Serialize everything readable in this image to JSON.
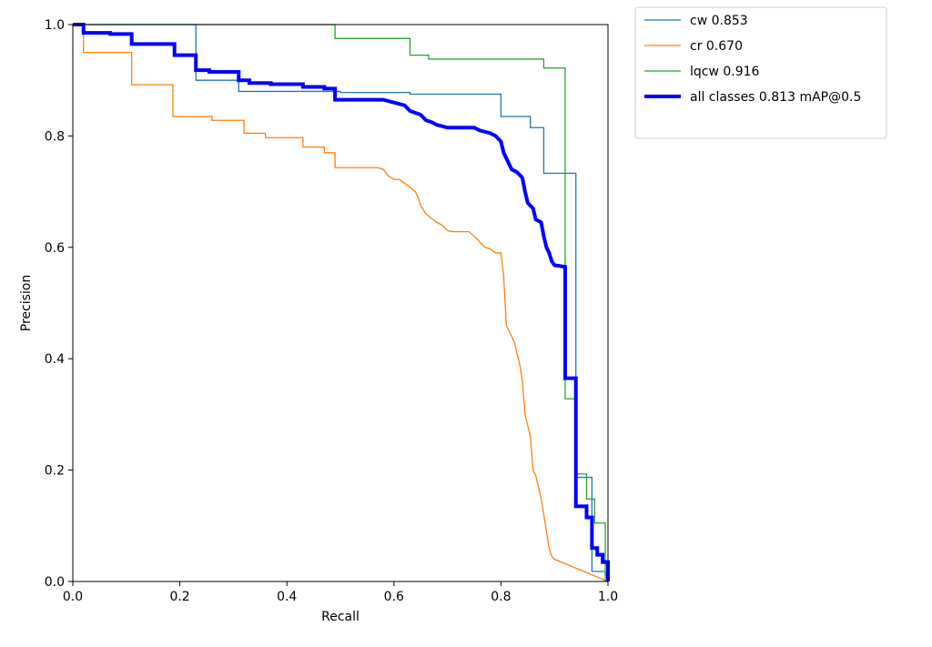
{
  "chart_data": {
    "type": "line",
    "title": "",
    "xlabel": "Recall",
    "ylabel": "Precision",
    "xlim": [
      0,
      1
    ],
    "ylim": [
      0,
      1
    ],
    "xticks": [
      0.0,
      0.2,
      0.4,
      0.6,
      0.8,
      1.0
    ],
    "yticks": [
      0.0,
      0.2,
      0.4,
      0.6,
      0.8,
      1.0
    ],
    "xtick_labels": [
      "0.0",
      "0.2",
      "0.4",
      "0.6",
      "0.8",
      "1.0"
    ],
    "ytick_labels": [
      "0.0",
      "0.2",
      "0.4",
      "0.6",
      "0.8",
      "1.0"
    ],
    "grid": false,
    "legend_position": "outside-top-right",
    "series": [
      {
        "name": "cw 0.853",
        "color": "#1f77b4",
        "points": [
          [
            0,
            1.0
          ],
          [
            0.23,
            1.0
          ],
          [
            0.23,
            0.9
          ],
          [
            0.31,
            0.9
          ],
          [
            0.31,
            0.88
          ],
          [
            0.5,
            0.88
          ],
          [
            0.5,
            0.878
          ],
          [
            0.63,
            0.878
          ],
          [
            0.63,
            0.875
          ],
          [
            0.8,
            0.875
          ],
          [
            0.8,
            0.835
          ],
          [
            0.855,
            0.835
          ],
          [
            0.855,
            0.815
          ],
          [
            0.88,
            0.815
          ],
          [
            0.88,
            0.733
          ],
          [
            0.94,
            0.733
          ],
          [
            0.94,
            0.187
          ],
          [
            0.97,
            0.187
          ],
          [
            0.97,
            0.018
          ],
          [
            0.995,
            0.018
          ],
          [
            1.0,
            0.0
          ]
        ]
      },
      {
        "name": "cr 0.670",
        "color": "#ff7f0e",
        "points": [
          [
            0,
            1.0
          ],
          [
            0.02,
            1.0
          ],
          [
            0.02,
            0.95
          ],
          [
            0.11,
            0.95
          ],
          [
            0.11,
            0.892
          ],
          [
            0.187,
            0.892
          ],
          [
            0.187,
            0.835
          ],
          [
            0.26,
            0.835
          ],
          [
            0.26,
            0.828
          ],
          [
            0.32,
            0.828
          ],
          [
            0.32,
            0.805
          ],
          [
            0.36,
            0.805
          ],
          [
            0.36,
            0.797
          ],
          [
            0.43,
            0.797
          ],
          [
            0.43,
            0.78
          ],
          [
            0.47,
            0.78
          ],
          [
            0.47,
            0.77
          ],
          [
            0.49,
            0.77
          ],
          [
            0.49,
            0.743
          ],
          [
            0.57,
            0.743
          ],
          [
            0.58,
            0.74
          ],
          [
            0.59,
            0.728
          ],
          [
            0.6,
            0.722
          ],
          [
            0.61,
            0.722
          ],
          [
            0.62,
            0.715
          ],
          [
            0.63,
            0.708
          ],
          [
            0.64,
            0.7
          ],
          [
            0.645,
            0.69
          ],
          [
            0.65,
            0.675
          ],
          [
            0.66,
            0.66
          ],
          [
            0.67,
            0.652
          ],
          [
            0.68,
            0.645
          ],
          [
            0.69,
            0.64
          ],
          [
            0.7,
            0.63
          ],
          [
            0.71,
            0.628
          ],
          [
            0.74,
            0.628
          ],
          [
            0.75,
            0.62
          ],
          [
            0.76,
            0.61
          ],
          [
            0.77,
            0.6
          ],
          [
            0.78,
            0.597
          ],
          [
            0.79,
            0.59
          ],
          [
            0.8,
            0.59
          ],
          [
            0.805,
            0.55
          ],
          [
            0.81,
            0.46
          ],
          [
            0.815,
            0.45
          ],
          [
            0.82,
            0.44
          ],
          [
            0.825,
            0.43
          ],
          [
            0.83,
            0.41
          ],
          [
            0.835,
            0.39
          ],
          [
            0.84,
            0.36
          ],
          [
            0.845,
            0.3
          ],
          [
            0.85,
            0.28
          ],
          [
            0.855,
            0.26
          ],
          [
            0.86,
            0.2
          ],
          [
            0.865,
            0.19
          ],
          [
            0.87,
            0.17
          ],
          [
            0.875,
            0.15
          ],
          [
            0.88,
            0.12
          ],
          [
            0.885,
            0.09
          ],
          [
            0.89,
            0.06
          ],
          [
            0.895,
            0.045
          ],
          [
            0.9,
            0.04
          ],
          [
            0.95,
            0.02
          ],
          [
            1.0,
            0.0
          ]
        ]
      },
      {
        "name": "lqcw 0.916",
        "color": "#2ca02c",
        "points": [
          [
            0,
            1.0
          ],
          [
            0.49,
            1.0
          ],
          [
            0.49,
            0.975
          ],
          [
            0.63,
            0.975
          ],
          [
            0.63,
            0.945
          ],
          [
            0.665,
            0.945
          ],
          [
            0.665,
            0.938
          ],
          [
            0.88,
            0.938
          ],
          [
            0.88,
            0.922
          ],
          [
            0.92,
            0.922
          ],
          [
            0.92,
            0.328
          ],
          [
            0.94,
            0.328
          ],
          [
            0.94,
            0.193
          ],
          [
            0.96,
            0.193
          ],
          [
            0.96,
            0.148
          ],
          [
            0.975,
            0.148
          ],
          [
            0.975,
            0.105
          ],
          [
            0.995,
            0.105
          ],
          [
            0.995,
            0.0
          ]
        ]
      },
      {
        "name": "all classes 0.813 mAP@0.5",
        "color": "#0000ff",
        "points": [
          [
            0,
            1.0
          ],
          [
            0.02,
            1.0
          ],
          [
            0.02,
            0.985
          ],
          [
            0.07,
            0.985
          ],
          [
            0.07,
            0.983
          ],
          [
            0.11,
            0.983
          ],
          [
            0.11,
            0.965
          ],
          [
            0.19,
            0.965
          ],
          [
            0.19,
            0.945
          ],
          [
            0.23,
            0.945
          ],
          [
            0.23,
            0.918
          ],
          [
            0.255,
            0.918
          ],
          [
            0.255,
            0.915
          ],
          [
            0.31,
            0.915
          ],
          [
            0.31,
            0.9
          ],
          [
            0.33,
            0.9
          ],
          [
            0.33,
            0.895
          ],
          [
            0.37,
            0.895
          ],
          [
            0.37,
            0.893
          ],
          [
            0.43,
            0.893
          ],
          [
            0.43,
            0.888
          ],
          [
            0.47,
            0.888
          ],
          [
            0.47,
            0.885
          ],
          [
            0.49,
            0.885
          ],
          [
            0.49,
            0.865
          ],
          [
            0.58,
            0.865
          ],
          [
            0.6,
            0.86
          ],
          [
            0.62,
            0.855
          ],
          [
            0.63,
            0.845
          ],
          [
            0.65,
            0.838
          ],
          [
            0.66,
            0.828
          ],
          [
            0.67,
            0.825
          ],
          [
            0.68,
            0.82
          ],
          [
            0.7,
            0.815
          ],
          [
            0.75,
            0.815
          ],
          [
            0.76,
            0.81
          ],
          [
            0.78,
            0.805
          ],
          [
            0.79,
            0.8
          ],
          [
            0.8,
            0.79
          ],
          [
            0.805,
            0.77
          ],
          [
            0.81,
            0.76
          ],
          [
            0.82,
            0.74
          ],
          [
            0.83,
            0.735
          ],
          [
            0.84,
            0.725
          ],
          [
            0.845,
            0.7
          ],
          [
            0.85,
            0.68
          ],
          [
            0.86,
            0.67
          ],
          [
            0.865,
            0.65
          ],
          [
            0.875,
            0.645
          ],
          [
            0.88,
            0.62
          ],
          [
            0.885,
            0.6
          ],
          [
            0.89,
            0.59
          ],
          [
            0.895,
            0.575
          ],
          [
            0.9,
            0.568
          ],
          [
            0.92,
            0.565
          ],
          [
            0.92,
            0.365
          ],
          [
            0.94,
            0.365
          ],
          [
            0.94,
            0.135
          ],
          [
            0.96,
            0.135
          ],
          [
            0.96,
            0.115
          ],
          [
            0.97,
            0.115
          ],
          [
            0.97,
            0.06
          ],
          [
            0.98,
            0.06
          ],
          [
            0.98,
            0.048
          ],
          [
            0.99,
            0.048
          ],
          [
            0.99,
            0.035
          ],
          [
            1.0,
            0.035
          ],
          [
            1.0,
            0.0
          ]
        ]
      }
    ]
  }
}
